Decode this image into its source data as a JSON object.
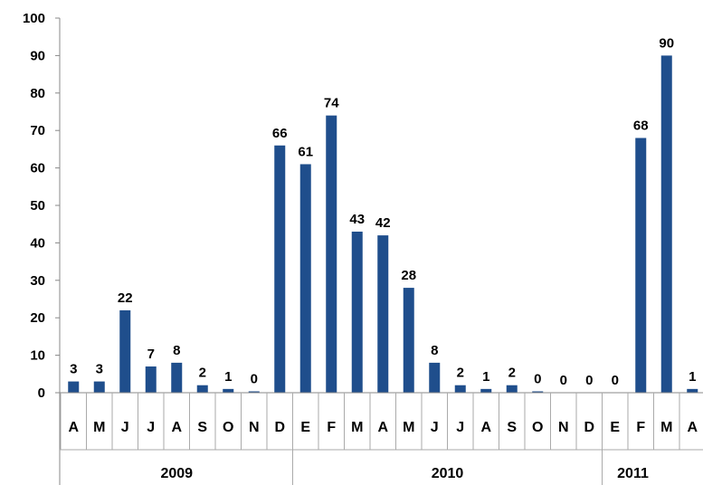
{
  "chart_data": {
    "type": "bar",
    "title": "",
    "xlabel": "",
    "ylabel": "",
    "ylim": [
      0,
      100
    ],
    "yticks": [
      0,
      10,
      20,
      30,
      40,
      50,
      60,
      70,
      80,
      90,
      100
    ],
    "grid": false,
    "legend": "none",
    "bar_color": "#1f4e8c",
    "categories": [
      "A",
      "M",
      "J",
      "J",
      "A",
      "S",
      "O",
      "N",
      "D",
      "E",
      "F",
      "M",
      "A",
      "M",
      "J",
      "J",
      "A",
      "S",
      "O",
      "N",
      "D",
      "E",
      "F",
      "M",
      "A"
    ],
    "values": [
      3,
      3,
      22,
      7,
      8,
      2,
      1,
      0,
      66,
      61,
      74,
      43,
      42,
      28,
      8,
      2,
      1,
      2,
      0,
      0,
      0,
      0,
      68,
      90,
      1
    ],
    "data_labels": [
      "3",
      "3",
      "22",
      "7",
      "8",
      "2",
      "1",
      "0",
      "66",
      "61",
      "74",
      "43",
      "42",
      "28",
      "8",
      "2",
      "1",
      "2",
      "0",
      "0",
      "0",
      "0",
      "68",
      "90",
      "1"
    ],
    "groups": [
      {
        "label": "2009",
        "count": 9
      },
      {
        "label": "2010",
        "count": 12
      },
      {
        "label": "2011",
        "count": 4
      }
    ]
  }
}
